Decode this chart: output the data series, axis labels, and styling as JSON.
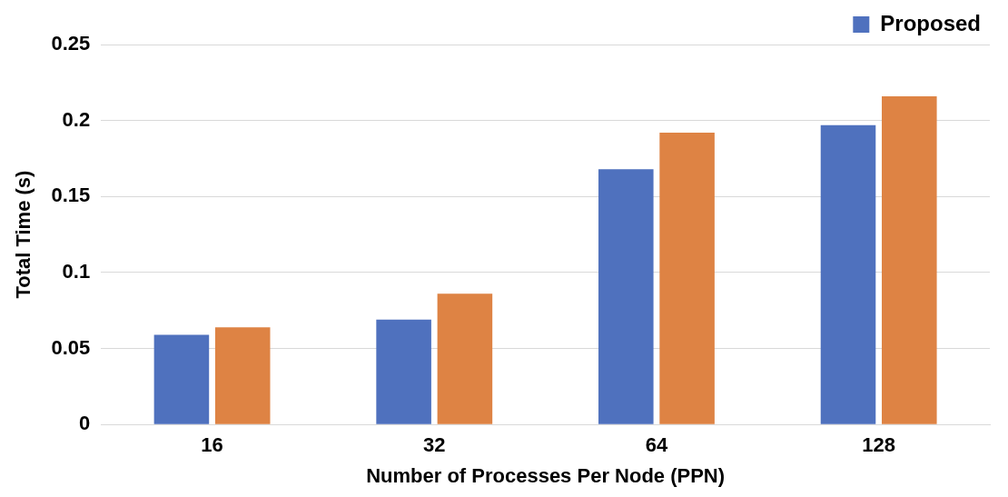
{
  "chart_data": {
    "type": "bar",
    "xlabel": "Number of Processes Per Node (PPN)",
    "ylabel": "Total Time (s)",
    "categories": [
      "16",
      "32",
      "64",
      "128"
    ],
    "series": [
      {
        "name": "Proposed",
        "color": "#4f71be",
        "values": [
          0.059,
          0.069,
          0.168,
          0.197
        ]
      },
      {
        "color": "#de8344",
        "values": [
          0.064,
          0.086,
          0.192,
          0.216
        ]
      }
    ],
    "ylim": [
      0,
      0.25
    ],
    "yticks": [
      0,
      0.05,
      0.1,
      0.15,
      0.2,
      0.25
    ],
    "grid": "y",
    "legend": "top right"
  }
}
